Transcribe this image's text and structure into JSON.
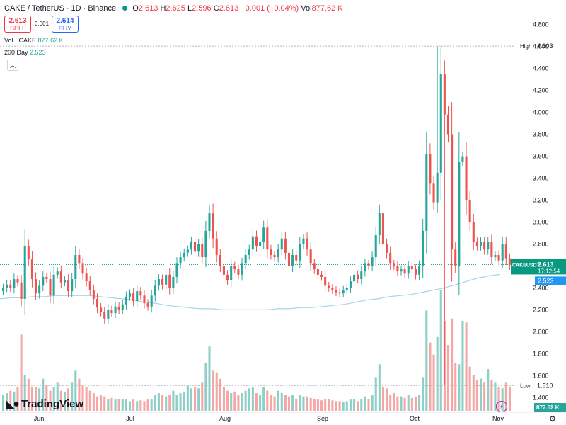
{
  "header": {
    "title": "CAKE / TetherUS · 1D · Binance",
    "ohlc": [
      {
        "label": "O",
        "value": "2.613"
      },
      {
        "label": "H",
        "value": "2.625"
      },
      {
        "label": "L",
        "value": "2.596"
      },
      {
        "label": "C",
        "value": "2.613"
      }
    ],
    "change": "−0.001 (−0.04%)",
    "vol_label": "Vol",
    "vol_value": "877.62 K"
  },
  "trade": {
    "sell_price": "2.613",
    "sell_label": "SELL",
    "spread": "0.001",
    "buy_price": "2.614",
    "buy_label": "BUY"
  },
  "indicators": {
    "volume_label": "Vol · CAKE",
    "volume_value": "877.62 K",
    "ma_label": "200 Day",
    "ma_value": "2.523"
  },
  "collapse_icon": "chevron-up-icon",
  "branding": "TradingView",
  "colors": {
    "up": "#26a69a",
    "down": "#ef5350",
    "vol_up": "#8ecfc7",
    "vol_down": "#f4a7a5",
    "ma": "#a9d4e8",
    "price_tag": "#089981",
    "ma_tag": "#2196f3"
  },
  "chart_data": {
    "type": "candlestick",
    "symbol": "CAKEUSDT",
    "y_ticks": [
      "4.800",
      "4.600",
      "4.400",
      "4.200",
      "4.000",
      "3.800",
      "3.600",
      "3.400",
      "3.200",
      "3.000",
      "2.800",
      "2.600",
      "2.400",
      "2.200",
      "2.000",
      "1.800",
      "1.600",
      "1.400"
    ],
    "y_range": [
      1.37,
      4.83
    ],
    "x_ticks": [
      "Jun",
      "Jul",
      "Aug",
      "Sep",
      "Oct",
      "Nov"
    ],
    "high_label": "High",
    "high_value": "4.603",
    "low_label": "Low",
    "low_value": "1.510",
    "last_price": "2.613",
    "countdown": "17:12:54",
    "ma_price": "2.523",
    "volume_last": "877.62 K",
    "closes": [
      2.4,
      2.43,
      2.4,
      2.48,
      2.45,
      2.3,
      2.78,
      2.66,
      2.48,
      2.35,
      2.42,
      2.5,
      2.48,
      2.33,
      2.52,
      2.55,
      2.45,
      2.47,
      2.37,
      2.48,
      2.7,
      2.62,
      2.53,
      2.46,
      2.38,
      2.3,
      2.22,
      2.18,
      2.12,
      2.2,
      2.17,
      2.23,
      2.2,
      2.25,
      2.32,
      2.35,
      2.28,
      2.37,
      2.33,
      2.26,
      2.23,
      2.33,
      2.42,
      2.48,
      2.43,
      2.52,
      2.4,
      2.5,
      2.62,
      2.68,
      2.72,
      2.75,
      2.82,
      2.73,
      2.8,
      2.68,
      2.92,
      3.08,
      2.85,
      2.7,
      2.6,
      2.52,
      2.47,
      2.6,
      2.57,
      2.52,
      2.62,
      2.7,
      2.75,
      2.87,
      2.78,
      2.82,
      2.95,
      2.75,
      2.7,
      2.68,
      2.75,
      2.85,
      2.72,
      2.6,
      2.7,
      2.65,
      2.8,
      2.85,
      2.75,
      2.62,
      2.57,
      2.52,
      2.5,
      2.42,
      2.4,
      2.38,
      2.36,
      2.35,
      2.38,
      2.4,
      2.46,
      2.52,
      2.48,
      2.55,
      2.62,
      2.6,
      2.68,
      2.88,
      3.08,
      2.8,
      2.72,
      2.62,
      2.6,
      2.55,
      2.57,
      2.53,
      2.6,
      2.57,
      2.52,
      2.6,
      2.92,
      3.62,
      3.35,
      3.18,
      3.45,
      4.35,
      3.98,
      3.8,
      2.75,
      2.6,
      3.55,
      3.6,
      3.2,
      3.0,
      2.82,
      2.78,
      2.82,
      2.75,
      2.82,
      2.68,
      2.7,
      2.65,
      2.8,
      2.67,
      2.61
    ],
    "ma200": [
      2.3,
      2.31,
      2.31,
      2.32,
      2.32,
      2.33,
      2.33,
      2.33,
      2.33,
      2.32,
      2.31,
      2.3,
      2.29,
      2.27,
      2.26,
      2.24,
      2.23,
      2.22,
      2.21,
      2.21,
      2.2,
      2.2,
      2.2,
      2.2,
      2.2,
      2.21,
      2.21,
      2.22,
      2.22,
      2.23,
      2.24,
      2.25,
      2.27,
      2.29,
      2.3,
      2.32,
      2.33,
      2.34,
      2.36,
      2.38,
      2.4,
      2.43,
      2.46,
      2.49,
      2.51,
      2.523
    ],
    "volume_scale": "relative 0-1",
    "volume": [
      0.2,
      0.22,
      0.25,
      0.24,
      0.3,
      0.95,
      0.45,
      0.4,
      0.3,
      0.3,
      0.28,
      0.4,
      0.32,
      0.25,
      0.3,
      0.35,
      0.25,
      0.24,
      0.28,
      0.35,
      0.5,
      0.4,
      0.32,
      0.3,
      0.25,
      0.22,
      0.18,
      0.2,
      0.18,
      0.15,
      0.16,
      0.14,
      0.15,
      0.15,
      0.14,
      0.12,
      0.14,
      0.12,
      0.13,
      0.12,
      0.14,
      0.15,
      0.2,
      0.22,
      0.2,
      0.18,
      0.2,
      0.25,
      0.2,
      0.22,
      0.24,
      0.32,
      0.28,
      0.3,
      0.28,
      0.35,
      0.6,
      0.8,
      0.5,
      0.48,
      0.4,
      0.3,
      0.25,
      0.22,
      0.24,
      0.2,
      0.22,
      0.25,
      0.28,
      0.3,
      0.22,
      0.2,
      0.3,
      0.25,
      0.2,
      0.18,
      0.25,
      0.22,
      0.2,
      0.18,
      0.2,
      0.15,
      0.2,
      0.18,
      0.18,
      0.16,
      0.15,
      0.14,
      0.13,
      0.15,
      0.15,
      0.13,
      0.12,
      0.12,
      0.11,
      0.12,
      0.14,
      0.15,
      0.12,
      0.15,
      0.18,
      0.15,
      0.2,
      0.42,
      0.58,
      0.3,
      0.28,
      0.2,
      0.22,
      0.18,
      0.18,
      0.16,
      0.2,
      0.16,
      0.18,
      0.2,
      0.42,
      1.25,
      0.85,
      0.7,
      0.92,
      1.5,
      1.12,
      0.82,
      1.15,
      0.6,
      0.58,
      1.12,
      1.1,
      0.55,
      0.45,
      0.38,
      0.4,
      0.35,
      0.52,
      0.38,
      0.35,
      0.3,
      0.28,
      0.35,
      0.3
    ]
  }
}
